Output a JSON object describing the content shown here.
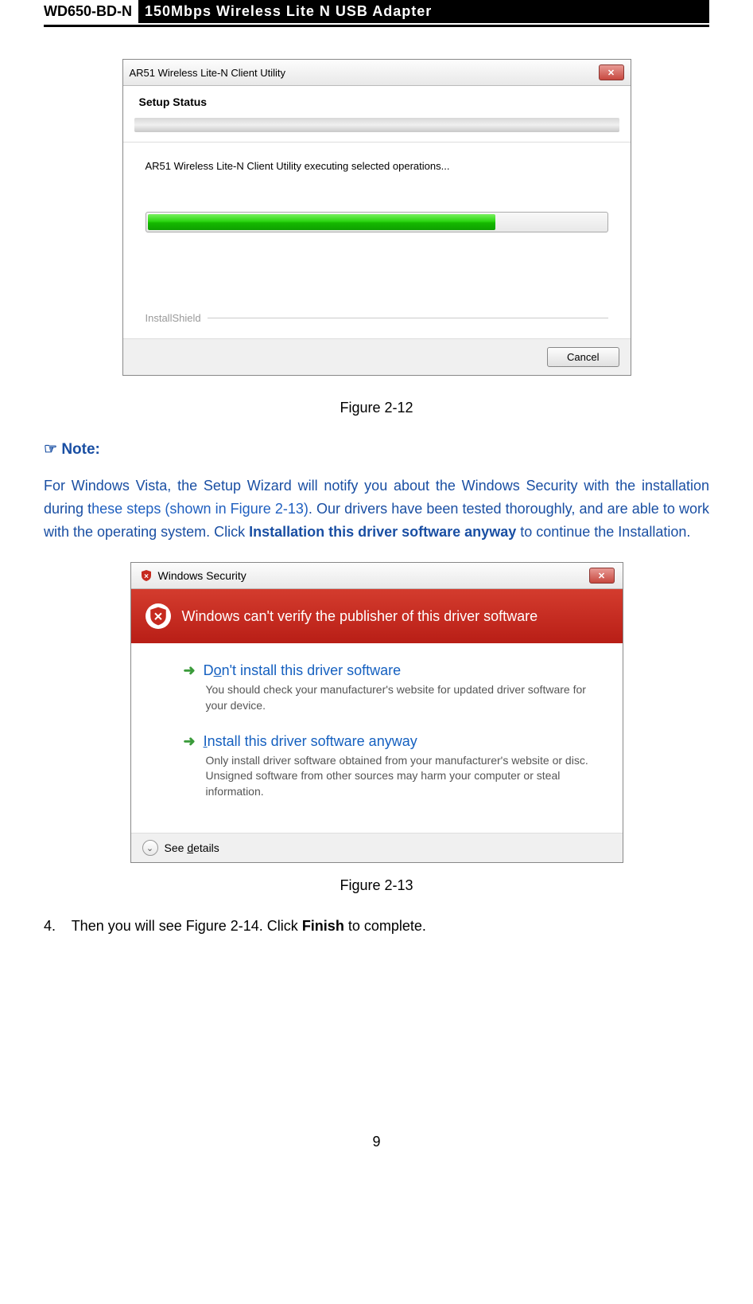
{
  "header": {
    "model": "WD650-BD-N",
    "title": "150Mbps Wireless Lite N USB Adapter"
  },
  "dialog1": {
    "title": "AR51 Wireless Lite-N Client Utility",
    "section_label": "Setup Status",
    "exec_text": "AR51 Wireless Lite-N Client Utility executing selected operations...",
    "progress_percent": 76,
    "install_shield": "InstallShield",
    "cancel": "Cancel"
  },
  "figure12": "Figure 2-12",
  "note": {
    "icon": "☞",
    "heading": "Note:",
    "text_parts": {
      "p1": "For Windows Vista, the Setup Wizard will notify you about the Windows Security with the installation during t",
      "p2": "hese steps (shown in Figure 2-13)",
      "p3": ". Our drivers have been tested thoroughly, and are able to work with the operating system. Click ",
      "bold": "Installation this driver software anyway",
      "p4": " to continue the Installation."
    }
  },
  "dialog2": {
    "title": "Windows Security",
    "banner": "Windows can't verify the publisher of this driver software",
    "option1": {
      "title_pre": "D",
      "title_u": "o",
      "title_post": "n't install this driver software",
      "desc": "You should check your manufacturer's website for updated driver software for your device."
    },
    "option2": {
      "title_u": "I",
      "title_post": "nstall this driver software anyway",
      "desc": "Only install driver software obtained from your manufacturer's website or disc. Unsigned software from other sources may harm your computer or steal information."
    },
    "see_details_pre": "See ",
    "see_details_u": "d",
    "see_details_post": "etails"
  },
  "figure13": "Figure 2-13",
  "step4": {
    "num": "4.",
    "text_pre": "Then you will see Figure 2-14. Click ",
    "bold": "Finish",
    "text_post": " to complete."
  },
  "page_number": "9",
  "colors": {
    "blue_text": "#1a4fa3",
    "red_banner": "#c62a1f",
    "green_arrow": "#3a9b3a",
    "link_blue": "#1560c0"
  }
}
